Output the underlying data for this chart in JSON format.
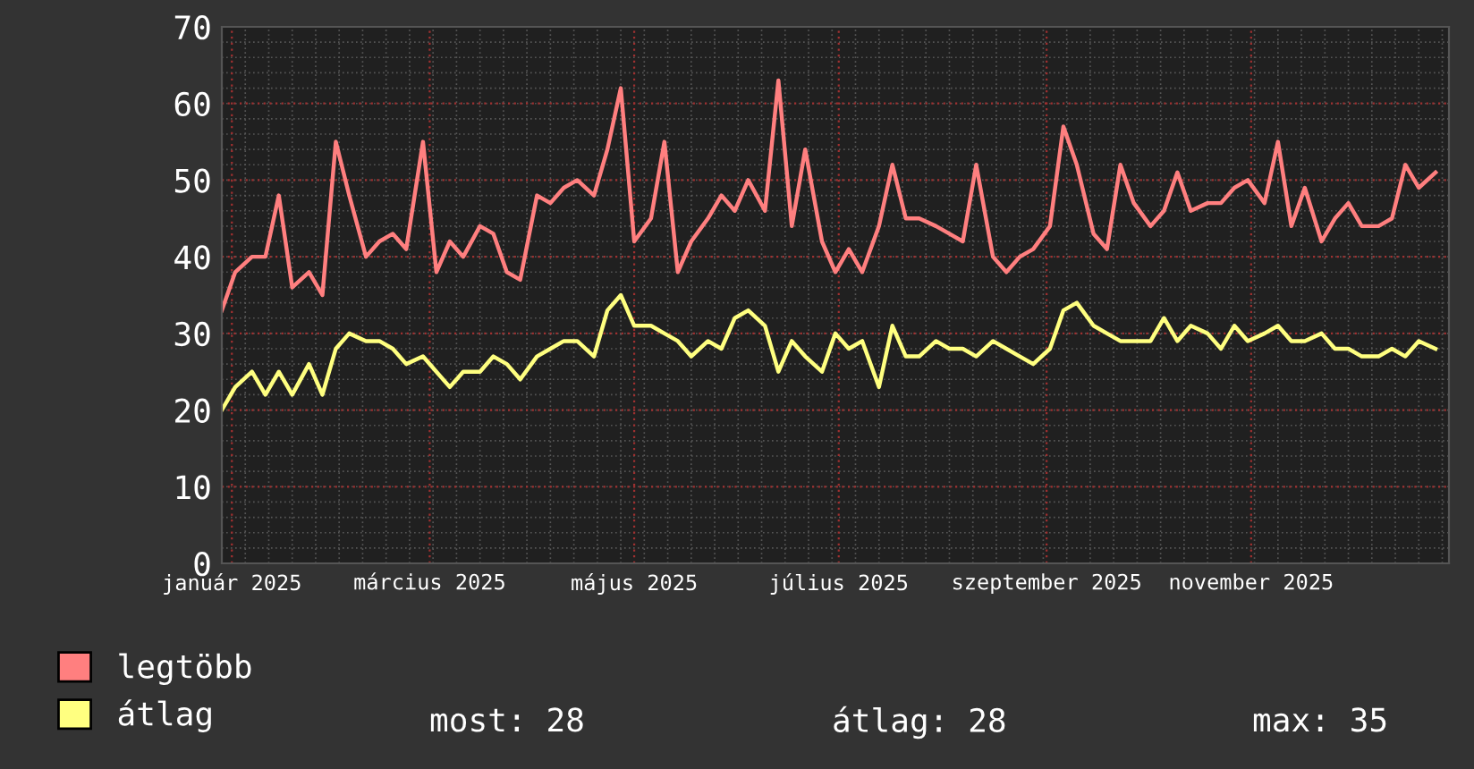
{
  "chart_data": {
    "type": "line",
    "x": [
      "2024-12-29",
      "2025-01-02",
      "2025-01-07",
      "2025-01-11",
      "2025-01-15",
      "2025-01-19",
      "2025-01-24",
      "2025-01-28",
      "2025-02-01",
      "2025-02-05",
      "2025-02-10",
      "2025-02-14",
      "2025-02-18",
      "2025-02-22",
      "2025-02-27",
      "2025-03-03",
      "2025-03-07",
      "2025-03-11",
      "2025-03-16",
      "2025-03-20",
      "2025-03-24",
      "2025-03-28",
      "2025-04-02",
      "2025-04-06",
      "2025-04-10",
      "2025-04-14",
      "2025-04-19",
      "2025-04-23",
      "2025-04-27",
      "2025-05-01",
      "2025-05-06",
      "2025-05-10",
      "2025-05-14",
      "2025-05-18",
      "2025-05-23",
      "2025-05-27",
      "2025-05-31",
      "2025-06-04",
      "2025-06-09",
      "2025-06-13",
      "2025-06-17",
      "2025-06-21",
      "2025-06-26",
      "2025-06-30",
      "2025-07-04",
      "2025-07-08",
      "2025-07-13",
      "2025-07-17",
      "2025-07-21",
      "2025-07-25",
      "2025-07-30",
      "2025-08-03",
      "2025-08-07",
      "2025-08-11",
      "2025-08-16",
      "2025-08-20",
      "2025-08-24",
      "2025-08-28",
      "2025-09-02",
      "2025-09-06",
      "2025-09-10",
      "2025-09-15",
      "2025-09-19",
      "2025-09-23",
      "2025-09-27",
      "2025-10-02",
      "2025-10-06",
      "2025-10-10",
      "2025-10-14",
      "2025-10-19",
      "2025-10-23",
      "2025-10-27",
      "2025-10-31",
      "2025-11-05",
      "2025-11-09",
      "2025-11-13",
      "2025-11-17",
      "2025-11-22",
      "2025-11-26",
      "2025-11-30",
      "2025-12-04",
      "2025-12-09",
      "2025-12-13",
      "2025-12-17",
      "2025-12-21",
      "2025-12-26"
    ],
    "series": [
      {
        "name": "legtöbb",
        "color": "#ff7f7f",
        "values": [
          33,
          38,
          40,
          40,
          48,
          36,
          38,
          35,
          55,
          48,
          40,
          42,
          43,
          41,
          55,
          38,
          42,
          40,
          44,
          43,
          38,
          37,
          48,
          47,
          49,
          50,
          48,
          54,
          62,
          42,
          45,
          55,
          38,
          42,
          45,
          48,
          46,
          50,
          46,
          63,
          44,
          54,
          42,
          38,
          41,
          38,
          44,
          52,
          45,
          45,
          44,
          43,
          42,
          52,
          40,
          38,
          40,
          41,
          44,
          57,
          52,
          43,
          41,
          52,
          47,
          44,
          46,
          51,
          46,
          47,
          47,
          49,
          50,
          47,
          55,
          44,
          49,
          42,
          45,
          47,
          44,
          44,
          45,
          52,
          49,
          51
        ]
      },
      {
        "name": "átlag",
        "color": "#ffff80",
        "values": [
          20,
          23,
          25,
          22,
          25,
          22,
          26,
          22,
          28,
          30,
          29,
          29,
          28,
          26,
          27,
          25,
          23,
          25,
          25,
          27,
          26,
          24,
          27,
          28,
          29,
          29,
          27,
          33,
          35,
          31,
          31,
          30,
          29,
          27,
          29,
          28,
          32,
          33,
          31,
          25,
          29,
          27,
          25,
          30,
          28,
          29,
          23,
          31,
          27,
          27,
          29,
          28,
          28,
          27,
          29,
          28,
          27,
          26,
          28,
          33,
          34,
          31,
          30,
          29,
          29,
          29,
          32,
          29,
          31,
          30,
          28,
          31,
          29,
          30,
          31,
          29,
          29,
          30,
          28,
          28,
          27,
          27,
          28,
          27,
          29,
          28
        ]
      }
    ],
    "xlim": [
      "2024-12-29",
      "2025-12-30"
    ],
    "xticks": [
      {
        "value": "2025-01-01",
        "label": "január 2025"
      },
      {
        "value": "2025-03-01",
        "label": "március 2025"
      },
      {
        "value": "2025-05-01",
        "label": "május 2025"
      },
      {
        "value": "2025-07-01",
        "label": "július 2025"
      },
      {
        "value": "2025-09-01",
        "label": "szeptember 2025"
      },
      {
        "value": "2025-11-01",
        "label": "november 2025"
      }
    ],
    "ylim": [
      0,
      70
    ],
    "yticks": [
      0,
      10,
      20,
      30,
      40,
      50,
      60,
      70
    ],
    "grid": true,
    "legend": "bottom",
    "line_style": "solid",
    "annotations": [
      "most: 28",
      "átlag: 28",
      "max: 35"
    ]
  }
}
